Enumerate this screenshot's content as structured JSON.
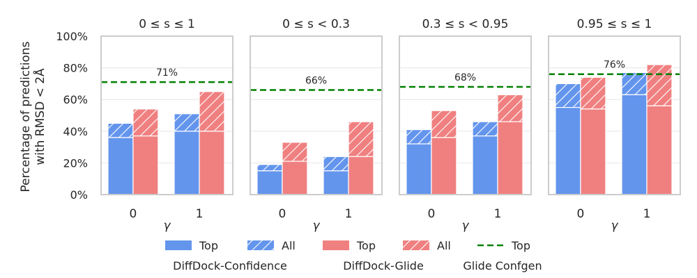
{
  "ylabel_lines": [
    "Percentage of predictions",
    "with RMSD < 2Å"
  ],
  "ytick_labels": [
    "0%",
    "20%",
    "40%",
    "60%",
    "80%",
    "100%"
  ],
  "colors": {
    "confidence": "#6495ed",
    "glide": "#f08080",
    "confgen": "#008000",
    "frame": "#cccccc",
    "grid": "#e5e5e5"
  },
  "legend": {
    "items": [
      {
        "label": "Top",
        "kind": "solid",
        "color_key": "confidence"
      },
      {
        "label": "All",
        "kind": "hatch",
        "color_key": "confidence"
      },
      {
        "label": "Top",
        "kind": "solid",
        "color_key": "glide"
      },
      {
        "label": "All",
        "kind": "hatch",
        "color_key": "glide"
      },
      {
        "label": "Top",
        "kind": "dash",
        "color_key": "confgen"
      }
    ],
    "groups": [
      "DiffDock-Confidence",
      "DiffDock-Glide",
      "Glide Confgen"
    ]
  },
  "chart_data": [
    {
      "type": "bar",
      "title": "0 ≤ s ≤ 1",
      "xlabel": "γ",
      "categories": [
        "0",
        "1"
      ],
      "ylim": [
        0,
        100
      ],
      "series": [
        {
          "name": "DiffDock-Confidence Top",
          "values": [
            36,
            40
          ]
        },
        {
          "name": "DiffDock-Confidence All",
          "values": [
            45,
            51
          ]
        },
        {
          "name": "DiffDock-Glide Top",
          "values": [
            37,
            40
          ]
        },
        {
          "name": "DiffDock-Glide All",
          "values": [
            54,
            65
          ]
        }
      ],
      "reference_line": {
        "name": "Glide Confgen Top",
        "value": 71,
        "label": "71%"
      }
    },
    {
      "type": "bar",
      "title": "0 ≤ s < 0.3",
      "xlabel": "γ",
      "categories": [
        "0",
        "1"
      ],
      "ylim": [
        0,
        100
      ],
      "series": [
        {
          "name": "DiffDock-Confidence Top",
          "values": [
            15,
            15
          ]
        },
        {
          "name": "DiffDock-Confidence All",
          "values": [
            19,
            24
          ]
        },
        {
          "name": "DiffDock-Glide Top",
          "values": [
            21,
            24
          ]
        },
        {
          "name": "DiffDock-Glide All",
          "values": [
            33,
            46
          ]
        }
      ],
      "reference_line": {
        "name": "Glide Confgen Top",
        "value": 66,
        "label": "66%"
      }
    },
    {
      "type": "bar",
      "title": "0.3 ≤ s < 0.95",
      "xlabel": "γ",
      "categories": [
        "0",
        "1"
      ],
      "ylim": [
        0,
        100
      ],
      "series": [
        {
          "name": "DiffDock-Confidence Top",
          "values": [
            32,
            37
          ]
        },
        {
          "name": "DiffDock-Confidence All",
          "values": [
            41,
            46
          ]
        },
        {
          "name": "DiffDock-Glide Top",
          "values": [
            36,
            46
          ]
        },
        {
          "name": "DiffDock-Glide All",
          "values": [
            53,
            63
          ]
        }
      ],
      "reference_line": {
        "name": "Glide Confgen Top",
        "value": 68,
        "label": "68%"
      }
    },
    {
      "type": "bar",
      "title": "0.95 ≤ s ≤ 1",
      "xlabel": "γ",
      "categories": [
        "0",
        "1"
      ],
      "ylim": [
        0,
        100
      ],
      "series": [
        {
          "name": "DiffDock-Confidence Top",
          "values": [
            55,
            63
          ]
        },
        {
          "name": "DiffDock-Confidence All",
          "values": [
            70,
            77
          ]
        },
        {
          "name": "DiffDock-Glide Top",
          "values": [
            54,
            56
          ]
        },
        {
          "name": "DiffDock-Glide All",
          "values": [
            74,
            82
          ]
        }
      ],
      "reference_line": {
        "name": "Glide Confgen Top",
        "value": 76,
        "label": "76%"
      }
    }
  ]
}
